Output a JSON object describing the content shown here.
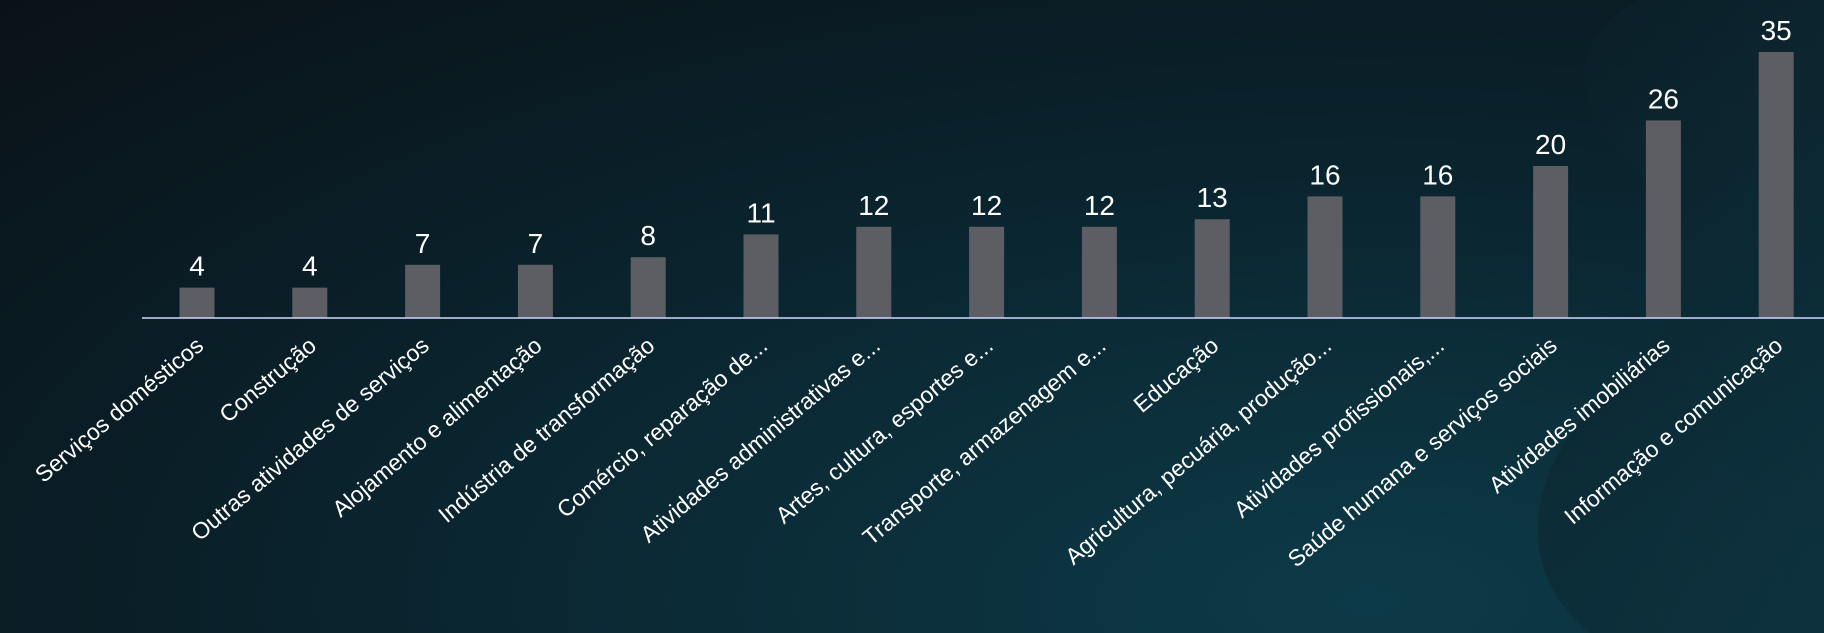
{
  "colors": {
    "bar": "#5d5d64",
    "text": "#ffffff",
    "axis": "#cfd8ff"
  },
  "chart_data": {
    "type": "bar",
    "title": "",
    "xlabel": "",
    "ylabel": "",
    "ylim": [
      0,
      35
    ],
    "grid": false,
    "categories": [
      "Serviços domésticos",
      "Construção",
      "Outras atividades de serviços",
      "Alojamento e alimentação",
      "Indústria de transformação",
      "Comércio, reparação de...",
      "Atividades administrativas e...",
      "Artes, cultura, esportes e...",
      "Transporte, armazenagem e...",
      "Educação",
      "Agricultura, pecuária, produção...",
      "Atividades profissionais,...",
      "Saúde humana e serviços sociais",
      "Atividades imobiliárias",
      "Informação e comunicação"
    ],
    "values": [
      4,
      4,
      7,
      7,
      8,
      11,
      12,
      12,
      12,
      13,
      16,
      16,
      20,
      26,
      35
    ]
  }
}
